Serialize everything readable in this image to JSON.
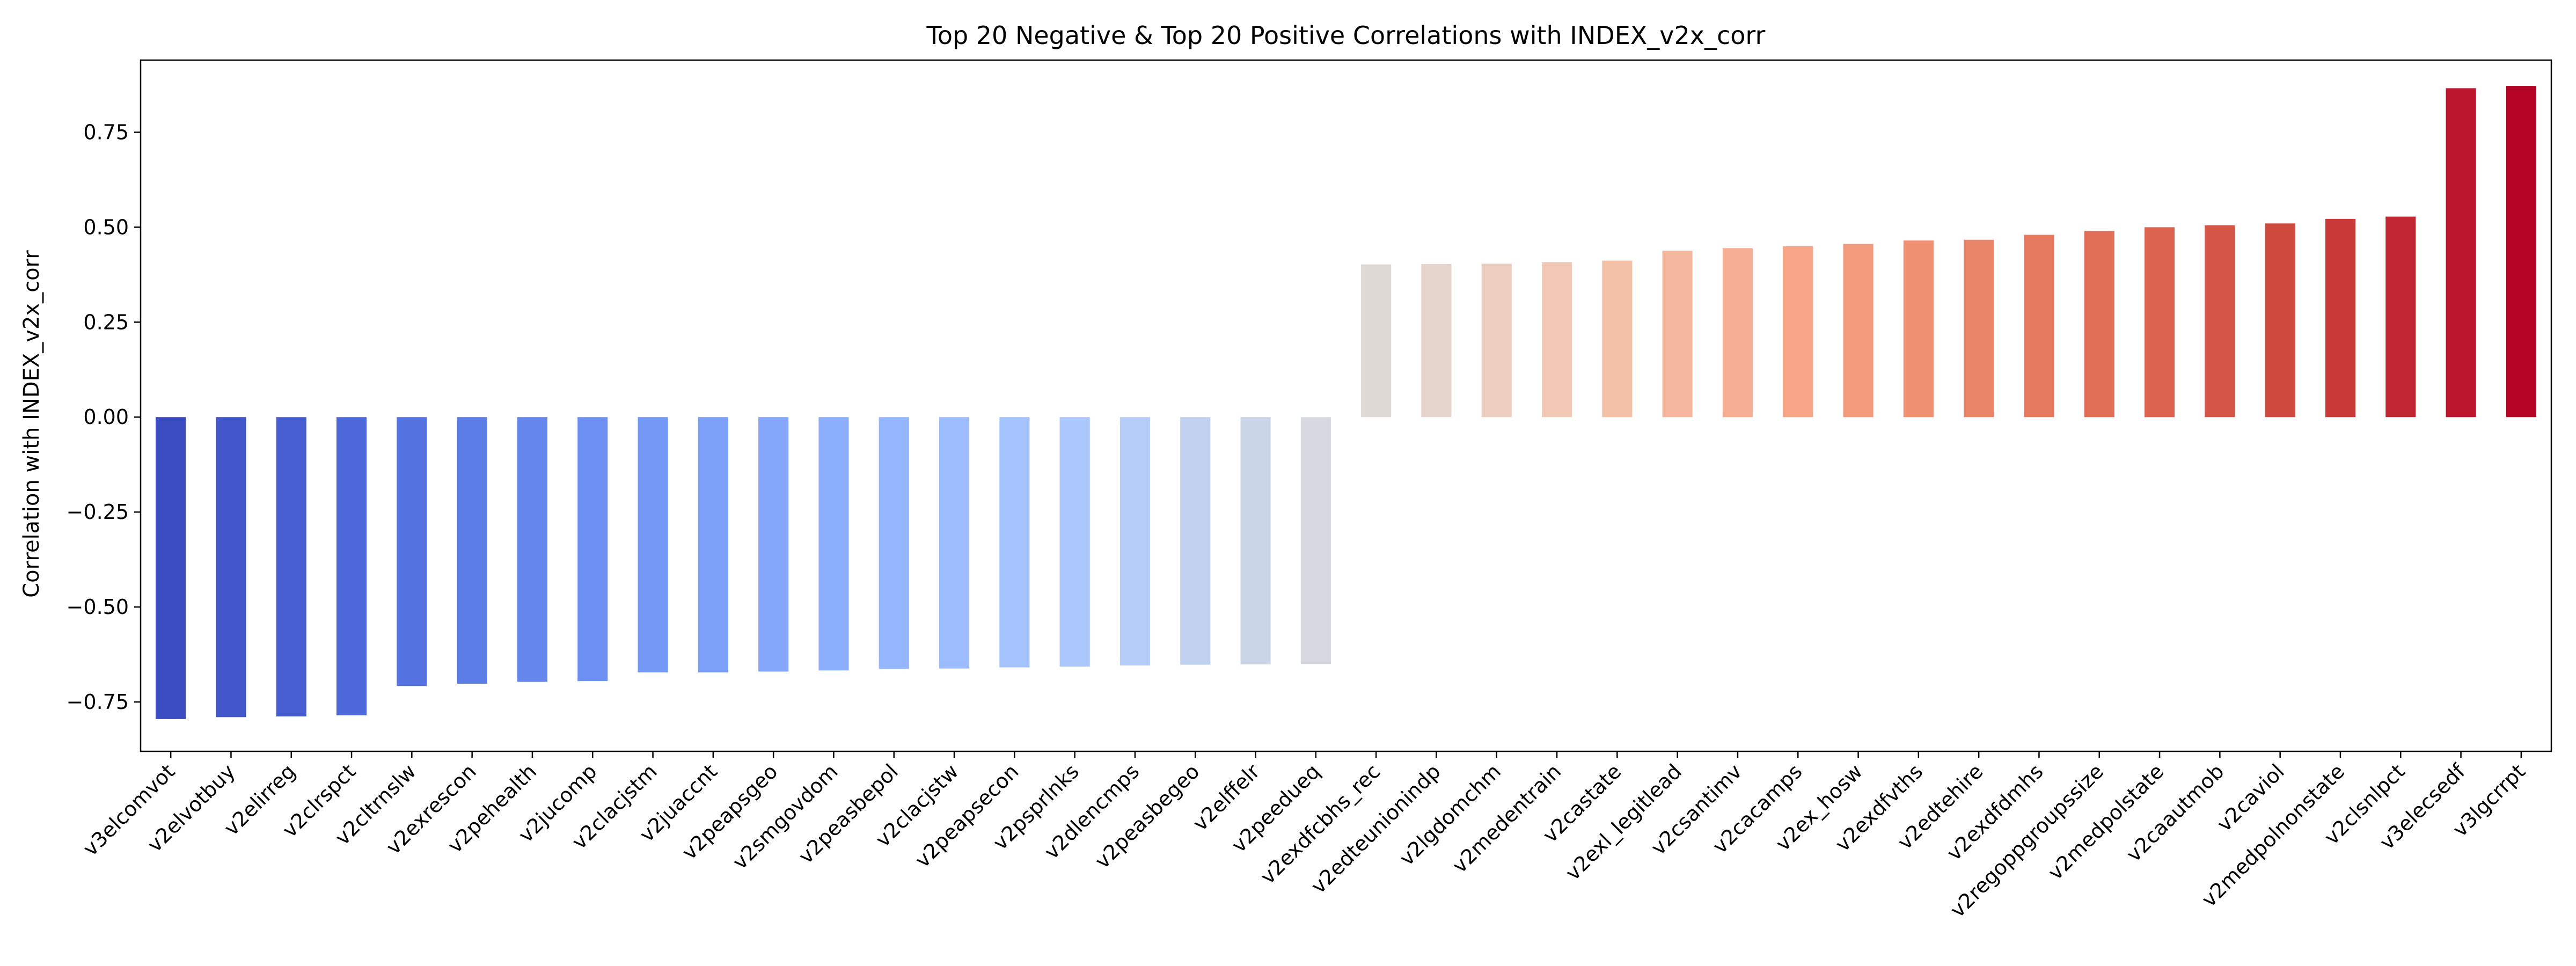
{
  "chart_data": {
    "type": "bar",
    "title": "Top 20 Negative & Top 20 Positive Correlations with INDEX_v2x_corr",
    "xlabel": "",
    "ylabel": "Correlation with INDEX_v2x_corr",
    "ylim": [
      -0.88,
      0.94
    ],
    "yticks": [
      -0.75,
      -0.5,
      -0.25,
      0.0,
      0.25,
      0.5,
      0.75
    ],
    "ytick_labels": [
      "−0.75",
      "−0.50",
      "−0.25",
      "0.00",
      "0.25",
      "0.50",
      "0.75"
    ],
    "grid": false,
    "legend": "none",
    "colormap": "coolwarm",
    "categories": [
      "v3elcomvot",
      "v2elvotbuy",
      "v2elirreg",
      "v2clrspct",
      "v2cltrnslw",
      "v2exrescon",
      "v2pehealth",
      "v2jucomp",
      "v2clacjstm",
      "v2juaccnt",
      "v2peapsgeo",
      "v2smgovdom",
      "v2peasbepol",
      "v2clacjstw",
      "v2peapsecon",
      "v2psprlnks",
      "v2dlencmps",
      "v2peasbegeo",
      "v2elffelr",
      "v2peedueq",
      "v2exdfcbhs_rec",
      "v2edteunionindp",
      "v2lgdomchm",
      "v2medentrain",
      "v2castate",
      "v2exl_legitlead",
      "v2csantimv",
      "v2cacamps",
      "v2ex_hosw",
      "v2exdfvths",
      "v2edtehire",
      "v2exdfdmhs",
      "v2regoppgroupssize",
      "v2medpolstate",
      "v2caautmob",
      "v2caviol",
      "v2medpolnonstate",
      "v2clsnlpct",
      "v3elecsedf",
      "v3lgcrrpt"
    ],
    "values": [
      -0.795,
      -0.79,
      -0.788,
      -0.785,
      -0.708,
      -0.702,
      -0.697,
      -0.695,
      -0.672,
      -0.672,
      -0.67,
      -0.667,
      -0.663,
      -0.662,
      -0.659,
      -0.657,
      -0.654,
      -0.652,
      -0.651,
      -0.65,
      0.402,
      0.403,
      0.404,
      0.408,
      0.412,
      0.438,
      0.445,
      0.45,
      0.456,
      0.465,
      0.467,
      0.48,
      0.49,
      0.5,
      0.505,
      0.51,
      0.522,
      0.528,
      0.866,
      0.872
    ]
  }
}
